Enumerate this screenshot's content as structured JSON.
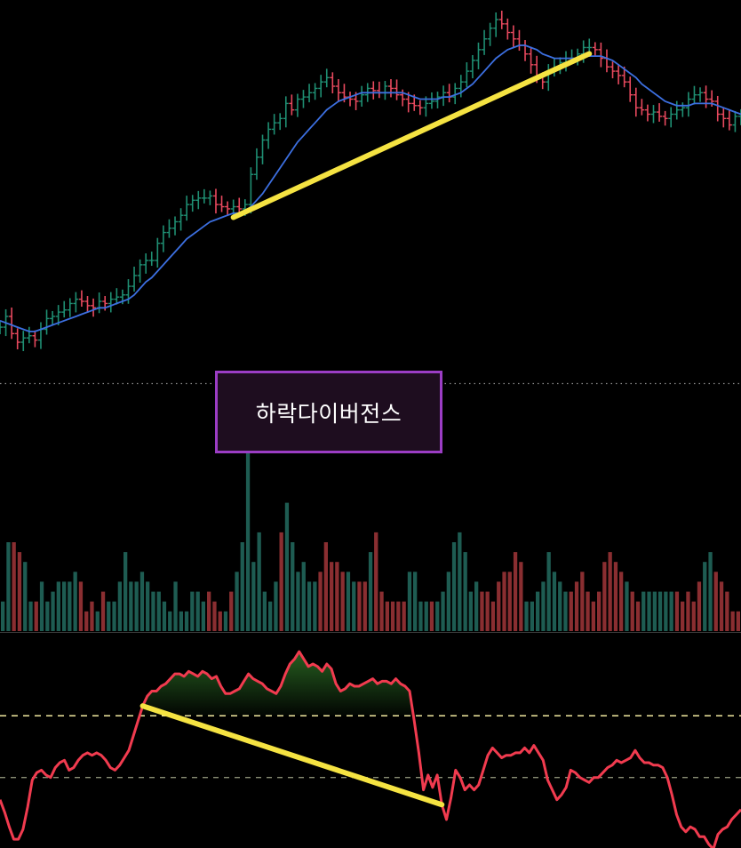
{
  "annotation": {
    "label": "하락다이버전스"
  },
  "colors": {
    "background": "#000000",
    "up": "#1f8f73",
    "down": "#e8495e",
    "moving_average": "#3c6fe0",
    "divergence_line": "#f5e342",
    "rsi_line": "#f13b4f",
    "rsi_fill": "#2b6a24",
    "overbought_line": "#f2eaa0",
    "midline": "#8a8f76",
    "separator": "#8c8c8c",
    "volume_up": "#1e5c52",
    "volume_down": "#8a2e31",
    "label_border": "#9b3dc4",
    "label_bg": "#1e0d1f"
  },
  "chart_data": [
    {
      "type": "line",
      "panel": "price",
      "series": [
        {
          "role": "price_bars",
          "values": [
            41,
            46,
            38,
            34,
            36,
            37,
            35,
            40,
            45,
            46,
            48,
            49,
            52,
            54,
            53,
            51,
            50,
            53,
            52,
            54,
            55,
            56,
            60,
            65,
            70,
            72,
            72,
            80,
            85,
            87,
            90,
            93,
            98,
            100,
            101,
            101,
            102,
            98,
            97,
            96,
            97,
            96,
            98,
            112,
            120,
            128,
            133,
            136,
            138,
            145,
            142,
            147,
            148,
            150,
            152,
            155,
            157,
            153,
            150,
            148,
            147,
            146,
            149,
            152,
            151,
            150,
            153,
            152,
            149,
            147,
            145,
            144,
            143,
            145,
            146,
            148,
            150,
            148,
            152,
            155,
            160,
            165,
            170,
            175,
            180,
            184,
            182,
            178,
            175,
            172,
            168,
            163,
            157,
            155,
            160,
            162,
            164,
            166,
            166,
            168,
            171,
            171,
            170,
            166,
            162,
            160,
            158,
            155,
            149,
            143,
            142,
            140,
            141,
            139,
            138,
            140,
            142,
            143,
            147,
            149,
            150,
            147,
            146,
            140,
            138,
            135,
            139,
            139
          ]
        },
        {
          "role": "moving_average",
          "values": [
            44,
            43,
            42,
            41,
            40,
            39,
            39,
            40,
            41,
            42,
            43,
            44,
            45,
            46,
            47,
            48,
            49,
            50,
            50,
            51,
            52,
            53,
            54,
            56,
            59,
            62,
            64,
            67,
            70,
            73,
            76,
            79,
            82,
            84,
            86,
            88,
            90,
            91,
            92,
            93,
            94,
            94,
            95,
            97,
            100,
            103,
            107,
            111,
            115,
            119,
            123,
            127,
            130,
            133,
            136,
            139,
            142,
            144,
            146,
            147,
            148,
            149,
            150,
            150,
            150,
            150,
            150,
            150,
            150,
            150,
            149,
            148,
            147,
            147,
            147,
            147,
            148,
            148,
            149,
            150,
            152,
            154,
            157,
            160,
            163,
            166,
            168,
            170,
            171,
            172,
            172,
            171,
            170,
            168,
            167,
            166,
            166,
            166,
            166,
            166,
            167,
            167,
            167,
            167,
            166,
            165,
            163,
            161,
            159,
            157,
            154,
            152,
            150,
            148,
            146,
            145,
            144,
            144,
            144,
            145,
            145,
            145,
            145,
            144,
            143,
            142,
            141,
            140
          ]
        }
      ],
      "divergence_trendline": {
        "from_bar": 40,
        "to_bar": 101,
        "trend": "rising"
      }
    },
    {
      "type": "bar",
      "panel": "volume",
      "values": [
        3,
        9,
        9,
        8,
        7,
        3,
        3,
        5,
        3,
        4,
        5,
        5,
        5,
        6,
        5,
        2,
        3,
        2,
        4,
        3,
        3,
        5,
        8,
        5,
        5,
        6,
        5,
        4,
        4,
        3,
        2,
        5,
        2,
        2,
        4,
        4,
        3,
        4,
        3,
        2,
        2,
        4,
        6,
        9,
        18,
        7,
        10,
        4,
        3,
        5,
        10,
        13,
        9,
        6,
        7,
        5,
        5,
        6,
        9,
        7,
        7,
        6,
        6,
        5,
        5,
        5,
        8,
        10,
        4,
        3,
        3,
        3,
        3,
        6,
        6,
        3,
        3,
        3,
        3,
        4,
        6,
        9,
        10,
        8,
        4,
        5,
        4,
        4,
        3,
        5,
        6,
        6,
        8,
        7,
        3,
        3,
        4,
        5,
        8,
        6,
        5,
        4,
        4,
        5,
        6,
        4,
        3,
        4,
        7,
        8,
        7,
        6,
        5,
        4,
        3,
        4,
        4,
        4,
        4,
        4,
        4,
        4,
        3,
        4,
        3,
        5,
        7,
        8,
        6,
        5,
        4,
        2,
        2
      ]
    },
    {
      "type": "line",
      "panel": "rsi",
      "series": [
        {
          "name": "",
          "values": [
            36,
            31,
            25,
            20,
            20,
            24,
            33,
            44,
            47,
            48,
            46,
            45,
            49,
            51,
            52,
            48,
            49,
            52,
            54,
            55,
            54,
            55,
            54,
            52,
            49,
            48,
            50,
            53,
            56,
            62,
            68,
            74,
            78,
            80,
            80,
            82,
            83,
            85,
            87,
            87,
            86,
            88,
            87,
            86,
            88,
            87,
            85,
            86,
            82,
            79,
            79,
            80,
            81,
            84,
            87,
            85,
            84,
            83,
            81,
            80,
            79,
            82,
            87,
            91,
            93,
            96,
            93,
            90,
            91,
            90,
            88,
            91,
            89,
            83,
            80,
            81,
            83,
            82,
            82,
            83,
            84,
            85,
            83,
            84,
            84,
            83,
            85,
            83,
            82,
            80,
            68,
            55,
            40,
            46,
            41,
            46,
            34,
            28,
            37,
            48,
            45,
            40,
            42,
            40,
            42,
            48,
            54,
            57,
            55,
            53,
            54,
            54,
            55,
            55,
            57,
            55,
            58,
            55,
            52,
            44,
            40,
            36,
            38,
            41,
            48,
            47,
            45,
            44,
            43,
            45,
            45,
            47,
            49,
            50,
            52,
            51,
            52,
            53,
            56,
            53,
            51,
            51,
            50,
            50,
            49,
            45,
            38,
            30,
            25,
            23,
            25,
            24,
            21,
            21,
            18,
            16,
            22,
            24,
            25,
            28,
            30,
            32
          ]
        }
      ],
      "reference_levels": [
        70,
        45
      ],
      "ylim": [
        15,
        100
      ],
      "divergence_trendline": {
        "from_index": 31,
        "to_index": 96,
        "trend": "falling"
      }
    }
  ]
}
